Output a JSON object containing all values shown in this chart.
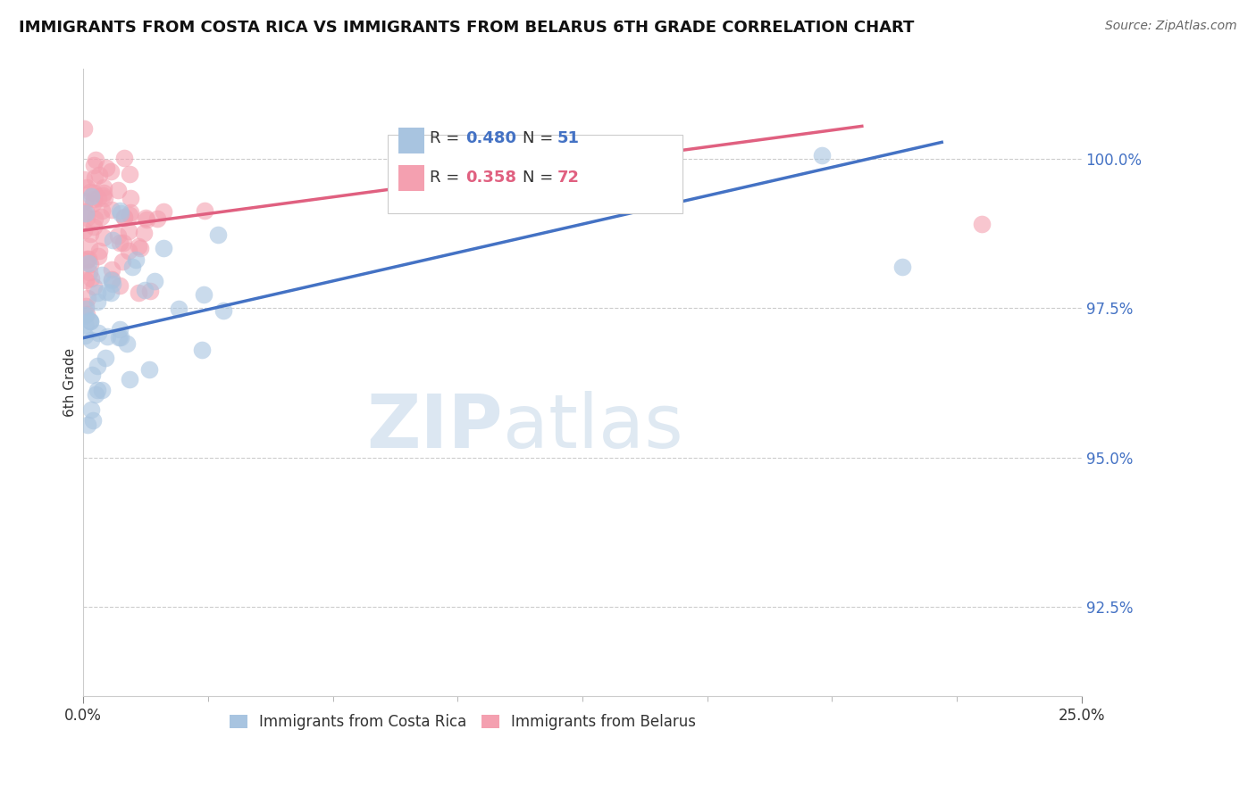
{
  "title": "IMMIGRANTS FROM COSTA RICA VS IMMIGRANTS FROM BELARUS 6TH GRADE CORRELATION CHART",
  "source": "Source: ZipAtlas.com",
  "ylabel": "6th Grade",
  "xlim": [
    0.0,
    25.0
  ],
  "ylim": [
    91.0,
    101.5
  ],
  "yticks": [
    92.5,
    95.0,
    97.5,
    100.0
  ],
  "ytick_labels": [
    "92.5%",
    "95.0%",
    "97.5%",
    "100.0%"
  ],
  "legend_labels": [
    "Immigrants from Costa Rica",
    "Immigrants from Belarus"
  ],
  "costa_rica_color": "#a8c4e0",
  "belarus_color": "#f4a0b0",
  "costa_rica_line_color": "#4472c4",
  "belarus_line_color": "#e06080",
  "R_costa_rica": 0.48,
  "N_costa_rica": 51,
  "R_belarus": 0.358,
  "N_belarus": 72,
  "background_color": "#ffffff",
  "watermark_zip": "ZIP",
  "watermark_atlas": "atlas",
  "grid_color": "#cccccc"
}
